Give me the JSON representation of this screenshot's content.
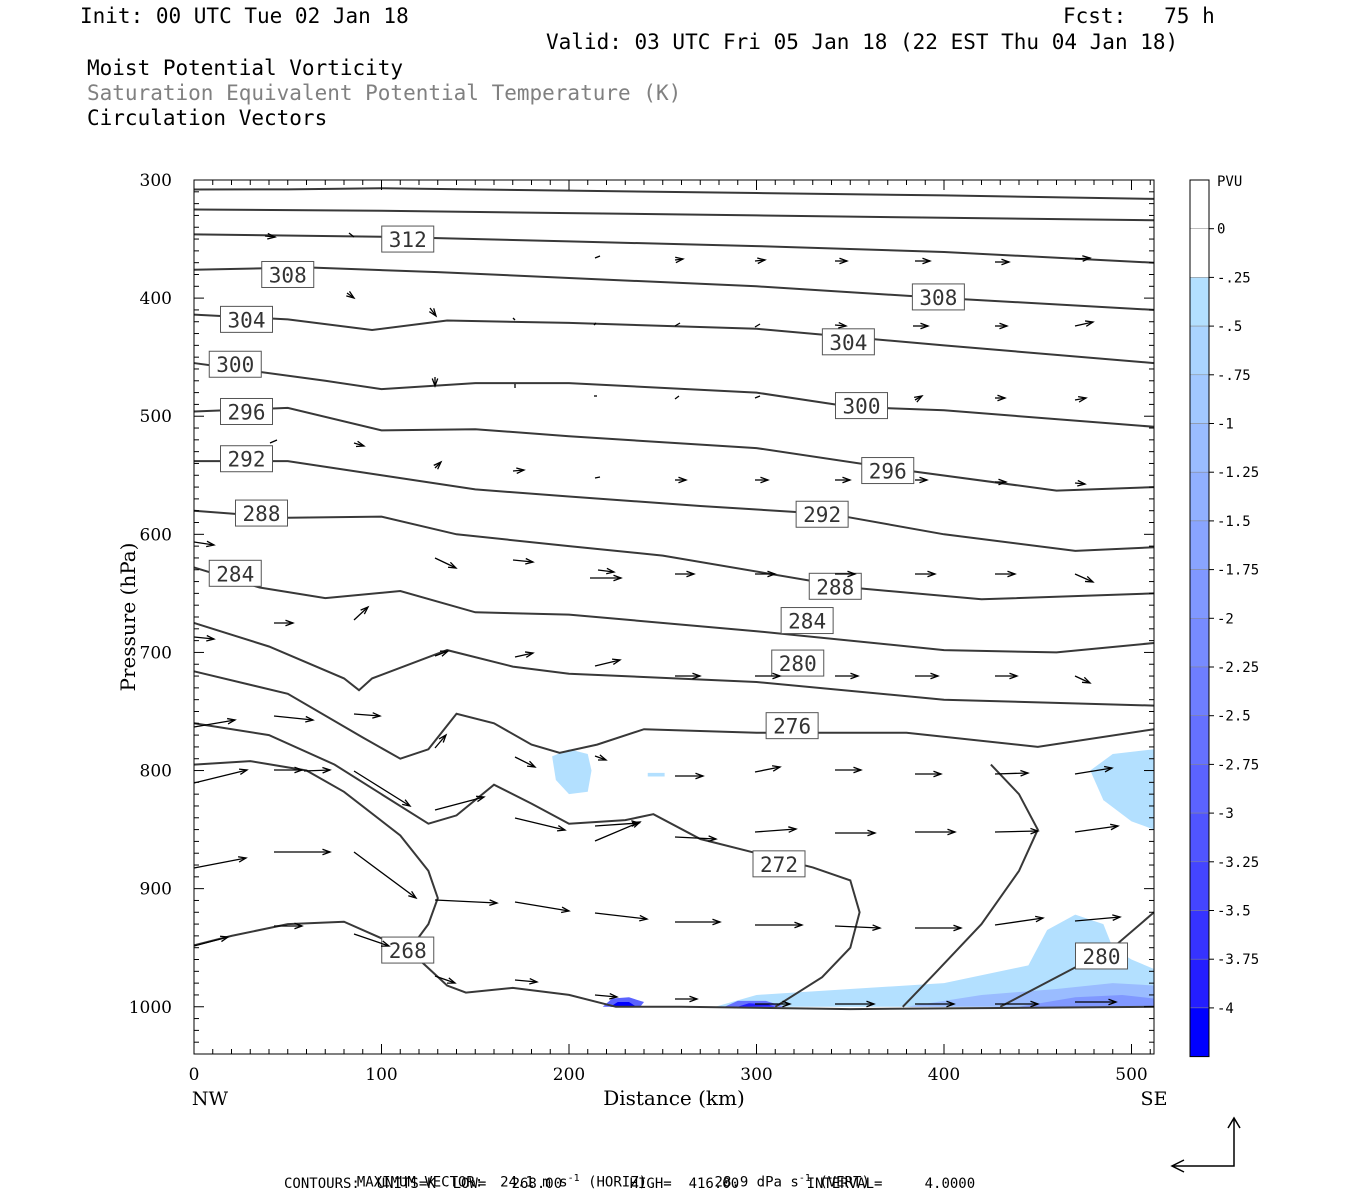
{
  "header": {
    "init": "Init: 00 UTC Tue 02 Jan 18",
    "fcst": "Fcst:   75 h",
    "valid": "Valid: 03 UTC Fri 05 Jan 18 (22 EST Thu 04 Jan 18)",
    "line1": "Moist Potential Vorticity",
    "line2": "Saturation Equivalent Potential Temperature (K)",
    "line3": "Circulation Vectors"
  },
  "footer": {
    "max_vector_label": "MAXIMUM VECTOR:",
    "horiz_value": "24.1 m s",
    "horiz_unit": "(HORIZ)",
    "vert_value": "28.9 dPa s",
    "vert_unit": "(VERT)",
    "exponent": "-1",
    "contours": "CONTOURS:  UNITS=K  LOW=   268.00        HIGH=  416.00        INTERVAL=     4.0000"
  },
  "colors": {
    "contour": "#383838",
    "vector": "#000000",
    "pv_light": "#b3e0ff",
    "pv_dark": "#0000ff"
  },
  "chart_data": {
    "type": "line",
    "title": "",
    "xlabel": "Distance (km)",
    "ylabel": "Pressure (hPa)",
    "xlim": [
      0,
      512
    ],
    "ylim": [
      1040,
      300
    ],
    "y_scale": "linear (inverted)",
    "x_ticks": [
      0,
      100,
      200,
      300,
      400,
      500
    ],
    "y_ticks": [
      300,
      400,
      500,
      600,
      700,
      800,
      900,
      1000
    ],
    "x_end_labels": {
      "left": "NW",
      "right": "SE"
    },
    "colorbar": {
      "unit": "PVU",
      "ticks": [
        "0",
        "-.25",
        "-.5",
        "-.75",
        "-1",
        "-1.25",
        "-1.5",
        "-1.75",
        "-2",
        "-2.25",
        "-2.5",
        "-2.75",
        "-3",
        "-3.25",
        "-3.5",
        "-3.75",
        "-4"
      ],
      "colors": [
        "#ffffff",
        "#ffffff",
        "#b3e0ff",
        "#aad4ff",
        "#a2c8ff",
        "#9abcff",
        "#91b0ff",
        "#89a4ff",
        "#8098ff",
        "#778bff",
        "#6e7eff",
        "#6571ff",
        "#5b63ff",
        "#5055ff",
        "#4445ff",
        "#3633ff",
        "#241eff",
        "#0000ff"
      ]
    },
    "contours": [
      {
        "value": "",
        "points": [
          [
            0,
            308
          ],
          [
            50,
            308
          ],
          [
            100,
            307
          ],
          [
            200,
            309
          ],
          [
            300,
            311
          ],
          [
            400,
            313
          ],
          [
            512,
            316
          ]
        ]
      },
      {
        "value": "",
        "points": [
          [
            0,
            325
          ],
          [
            100,
            326
          ],
          [
            200,
            328
          ],
          [
            300,
            330
          ],
          [
            400,
            332
          ],
          [
            512,
            334
          ]
        ]
      },
      {
        "value": "312",
        "label_at": [
          114,
          350
        ],
        "points": [
          [
            0,
            346
          ],
          [
            100,
            348
          ],
          [
            200,
            352
          ],
          [
            300,
            356
          ],
          [
            400,
            361
          ],
          [
            512,
            370
          ]
        ]
      },
      {
        "value": "308",
        "label_at": [
          50,
          380
        ],
        "label2_at": [
          397,
          399
        ],
        "points": [
          [
            0,
            376
          ],
          [
            60,
            374
          ],
          [
            130,
            378
          ],
          [
            200,
            383
          ],
          [
            300,
            390
          ],
          [
            400,
            400
          ],
          [
            512,
            410
          ]
        ]
      },
      {
        "value": "304",
        "label_at": [
          28,
          418
        ],
        "label2_at": [
          349,
          437
        ],
        "points": [
          [
            0,
            414
          ],
          [
            50,
            418
          ],
          [
            95,
            427
          ],
          [
            135,
            419
          ],
          [
            200,
            421
          ],
          [
            300,
            426
          ],
          [
            350,
            433
          ],
          [
            400,
            440
          ],
          [
            512,
            455
          ]
        ]
      },
      {
        "value": "300",
        "label_at": [
          22,
          456
        ],
        "label2_at": [
          356,
          491
        ],
        "points": [
          [
            0,
            455
          ],
          [
            70,
            470
          ],
          [
            100,
            477
          ],
          [
            150,
            472
          ],
          [
            200,
            472
          ],
          [
            300,
            480
          ],
          [
            350,
            492
          ],
          [
            400,
            495
          ],
          [
            512,
            509
          ]
        ]
      },
      {
        "value": "296",
        "label_at": [
          28,
          496
        ],
        "label2_at": [
          370,
          546
        ],
        "points": [
          [
            0,
            496
          ],
          [
            50,
            493
          ],
          [
            100,
            512
          ],
          [
            150,
            511
          ],
          [
            200,
            517
          ],
          [
            300,
            527
          ],
          [
            380,
            546
          ],
          [
            460,
            563
          ],
          [
            512,
            560
          ]
        ]
      },
      {
        "value": "292",
        "label_at": [
          28,
          536
        ],
        "label2_at": [
          335,
          583
        ],
        "points": [
          [
            0,
            538
          ],
          [
            50,
            538
          ],
          [
            100,
            550
          ],
          [
            150,
            562
          ],
          [
            200,
            568
          ],
          [
            270,
            576
          ],
          [
            340,
            583
          ],
          [
            400,
            600
          ],
          [
            470,
            614
          ],
          [
            512,
            611
          ]
        ]
      },
      {
        "value": "288",
        "label_at": [
          36,
          582
        ],
        "label2_at": [
          342,
          644
        ],
        "points": [
          [
            0,
            580
          ],
          [
            50,
            586
          ],
          [
            100,
            585
          ],
          [
            140,
            600
          ],
          [
            200,
            610
          ],
          [
            250,
            618
          ],
          [
            350,
            645
          ],
          [
            420,
            655
          ],
          [
            512,
            650
          ]
        ]
      },
      {
        "value": "284",
        "label_at": [
          22,
          633
        ],
        "label2_at": [
          327,
          673
        ],
        "points": [
          [
            0,
            628
          ],
          [
            35,
            645
          ],
          [
            70,
            654
          ],
          [
            110,
            648
          ],
          [
            150,
            666
          ],
          [
            200,
            668
          ],
          [
            300,
            682
          ],
          [
            400,
            698
          ],
          [
            460,
            700
          ],
          [
            512,
            692
          ]
        ]
      },
      {
        "value": "280",
        "label_at": [
          322,
          709
        ],
        "label2_at": [
          484,
          957
        ],
        "points": [
          [
            0,
            675
          ],
          [
            40,
            695
          ],
          [
            80,
            722
          ],
          [
            88,
            732
          ],
          [
            95,
            722
          ],
          [
            135,
            698
          ],
          [
            170,
            712
          ],
          [
            200,
            718
          ],
          [
            300,
            725
          ],
          [
            400,
            740
          ],
          [
            512,
            745
          ]
        ]
      },
      {
        "value": "276",
        "label_at": [
          319,
          762
        ],
        "points": [
          [
            0,
            716
          ],
          [
            50,
            735
          ],
          [
            90,
            772
          ],
          [
            110,
            790
          ],
          [
            125,
            782
          ],
          [
            140,
            752
          ],
          [
            160,
            760
          ],
          [
            180,
            778
          ],
          [
            195,
            785
          ],
          [
            215,
            778
          ],
          [
            240,
            765
          ],
          [
            300,
            768
          ],
          [
            380,
            768
          ],
          [
            450,
            780
          ],
          [
            512,
            765
          ]
        ]
      }
    ],
    "vectors_note": "Circulation vectors (m s-1 horizontal, dPa s-1 vertical)",
    "pv_shading_note": "Negative moist PV (PVU) near surface at 200-512 km"
  }
}
